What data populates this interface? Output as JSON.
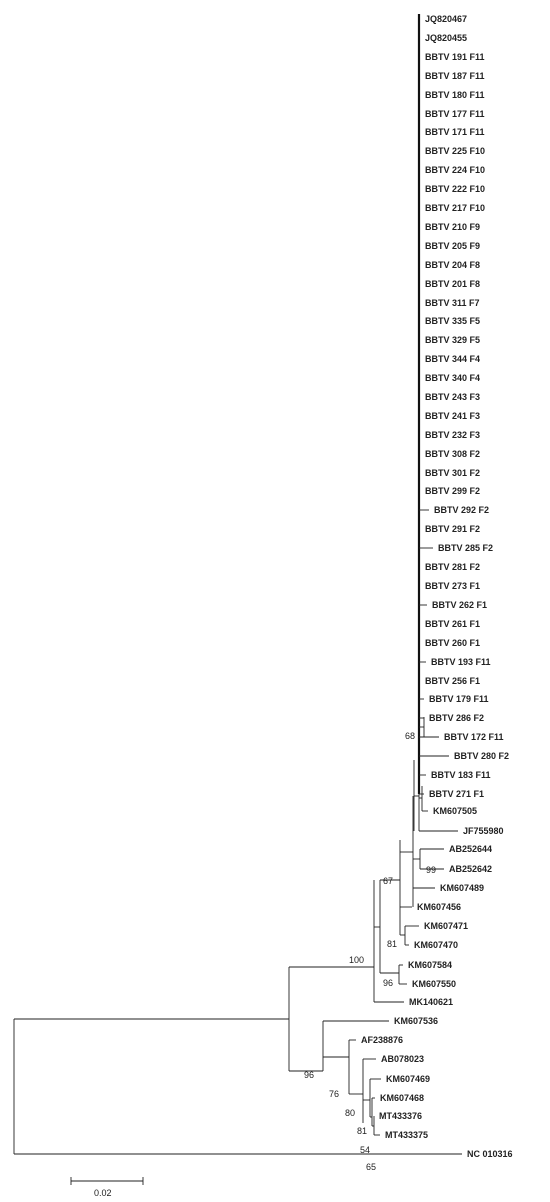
{
  "leaves": [
    "JQ820467",
    "JQ820455",
    "BBTV 191 F11",
    "BBTV 187 F11",
    "BBTV 180 F11",
    "BBTV 177 F11",
    "BBTV 171 F11",
    "BBTV 225 F10",
    "BBTV 224 F10",
    "BBTV 222 F10",
    "BBTV 217 F10",
    "BBTV 210 F9",
    "BBTV 205 F9",
    "BBTV 204 F8",
    "BBTV 201 F8",
    "BBTV 311 F7",
    "BBTV 335 F5",
    "BBTV 329 F5",
    "BBTV 344 F4",
    "BBTV 340 F4",
    "BBTV 243 F3",
    "BBTV 241 F3",
    "BBTV 232 F3",
    "BBTV 308 F2",
    "BBTV 301 F2",
    "BBTV 299 F2",
    "BBTV 292 F2",
    "BBTV 291 F2",
    "BBTV 285 F2",
    "BBTV 281 F2",
    "BBTV 273 F1",
    "BBTV 262 F1",
    "BBTV 261 F1",
    "BBTV 260 F1",
    "BBTV 193 F11",
    "BBTV 256 F1",
    "BBTV 179 F11",
    "BBTV 286 F2",
    "BBTV 172 F11",
    "BBTV 280 F2",
    "BBTV 183 F11",
    "BBTV 271 F1",
    "KM607505",
    "JF755980",
    "AB252644",
    "AB252642",
    "KM607489",
    "KM607456",
    "KM607471",
    "KM607470",
    "KM607584",
    "KM607550",
    "MK140621",
    "KM607536",
    "AF238876",
    "AB078023",
    "KM607469",
    "KM607468",
    "MT433376",
    "MT433375",
    "NC 010316"
  ],
  "bootstrap": [
    "68",
    "99",
    "67",
    "81",
    "100",
    "96",
    "96",
    "76",
    "80",
    "81",
    "54",
    "65"
  ],
  "scale_bar": {
    "label": "0.02"
  }
}
